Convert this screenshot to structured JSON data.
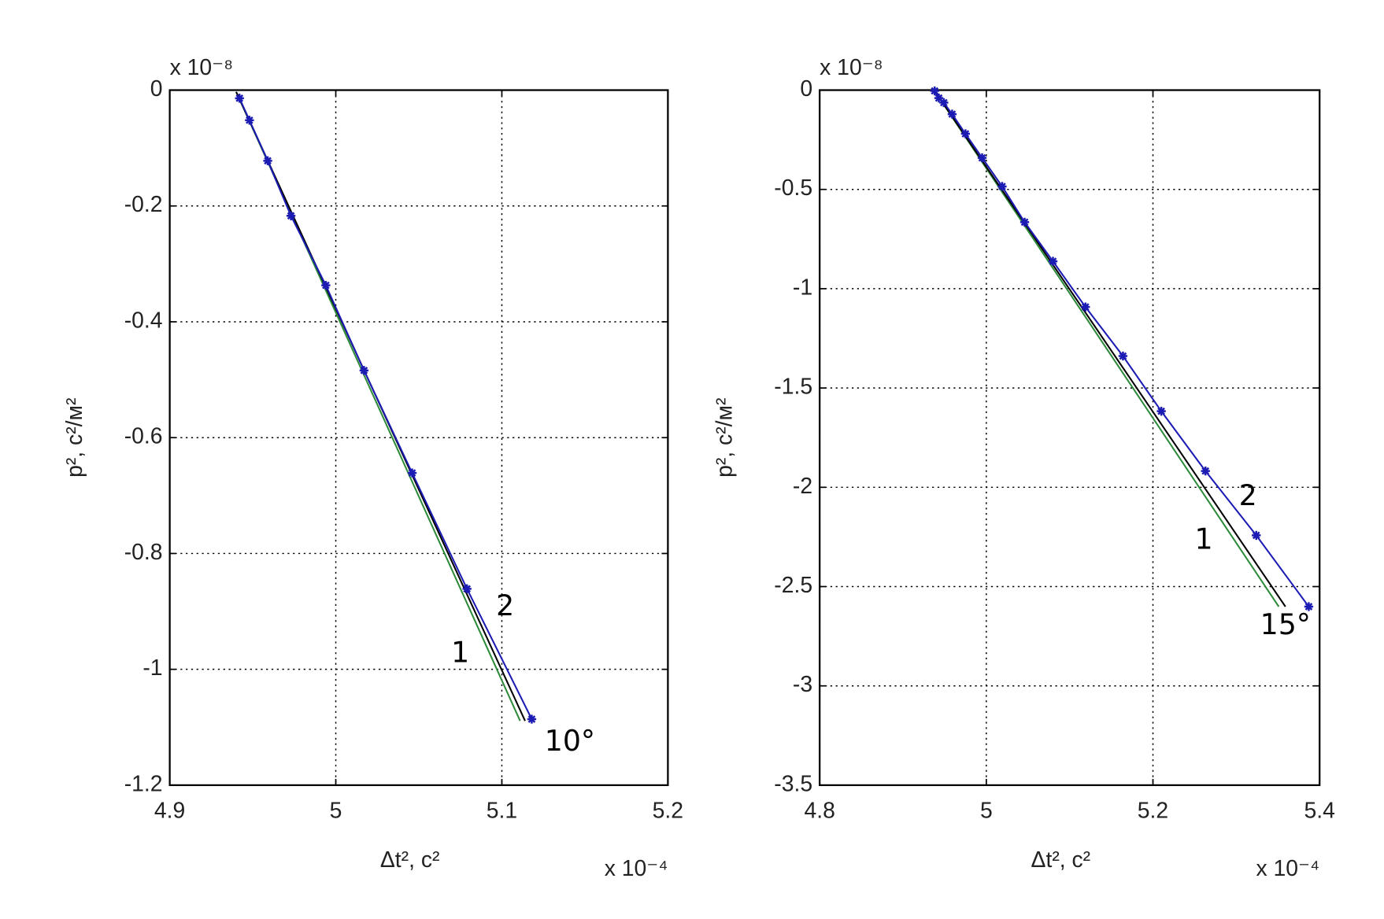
{
  "chart_data": [
    {
      "type": "line",
      "x_label": "Δt², c²",
      "y_label": "p², c²/м²",
      "x_multiplier": "x 10⁻⁴",
      "y_multiplier": "x 10⁻⁸",
      "xlim": [
        4.9,
        5.2
      ],
      "xticks": [
        4.9,
        5,
        5.1,
        5.2
      ],
      "ylim": [
        -1.2,
        0
      ],
      "yticks": [
        0,
        -0.2,
        -0.4,
        -0.6,
        -0.8,
        -1,
        -1.2
      ],
      "grid": true,
      "series": [
        {
          "color": "#2e8b3a",
          "x": [
            4.94,
            5.111
          ],
          "values": [
            -0.003,
            -1.089
          ]
        },
        {
          "color": "#000000",
          "x": [
            4.94,
            5.114
          ],
          "values": [
            -0.003,
            -1.089
          ]
        },
        {
          "color": "#1c1cb4",
          "marker": true,
          "x": [
            4.942,
            4.948,
            4.959,
            4.973,
            4.994,
            5.017,
            5.046,
            5.079,
            5.118
          ],
          "values": [
            -0.014,
            -0.052,
            -0.122,
            -0.217,
            -0.337,
            -0.484,
            -0.661,
            -0.861,
            -1.086
          ]
        }
      ],
      "annotations": [
        {
          "text": "2",
          "x": 5.102,
          "y": -0.893
        },
        {
          "text": "1",
          "x": 5.075,
          "y": -0.974
        },
        {
          "text": "10°",
          "x": 5.141,
          "y": -1.127
        }
      ]
    },
    {
      "type": "line",
      "x_label": "Δt², c²",
      "y_label": "p², c²/м²",
      "x_multiplier": "x 10⁻⁴",
      "y_multiplier": "x 10⁻⁸",
      "xlim": [
        4.8,
        5.4
      ],
      "xticks": [
        4.8,
        5,
        5.2,
        5.4
      ],
      "ylim": [
        -3.5,
        0
      ],
      "yticks": [
        0,
        -0.5,
        -1,
        -1.5,
        -2,
        -2.5,
        -3,
        -3.5
      ],
      "grid": true,
      "series": [
        {
          "color": "#2e8b3a",
          "x": [
            4.938,
            5.351
          ],
          "values": [
            -0.004,
            -2.601
          ]
        },
        {
          "color": "#000000",
          "x": [
            4.938,
            5.359
          ],
          "values": [
            -0.004,
            -2.601
          ]
        },
        {
          "color": "#1c1cb4",
          "marker": true,
          "x": [
            4.938,
            4.943,
            4.949,
            4.959,
            4.975,
            4.995,
            5.019,
            5.046,
            5.08,
            5.119,
            5.164,
            5.21,
            5.263,
            5.324,
            5.387
          ],
          "values": [
            -0.004,
            -0.04,
            -0.063,
            -0.121,
            -0.22,
            -0.341,
            -0.485,
            -0.665,
            -0.862,
            -1.092,
            -1.339,
            -1.617,
            -1.918,
            -2.242,
            -2.601
          ]
        }
      ],
      "annotations": [
        {
          "text": "2",
          "x": 5.314,
          "y": -2.05
        },
        {
          "text": "1",
          "x": 5.261,
          "y": -2.27
        },
        {
          "text": "15°",
          "x": 5.359,
          "y": -2.7
        }
      ]
    }
  ]
}
